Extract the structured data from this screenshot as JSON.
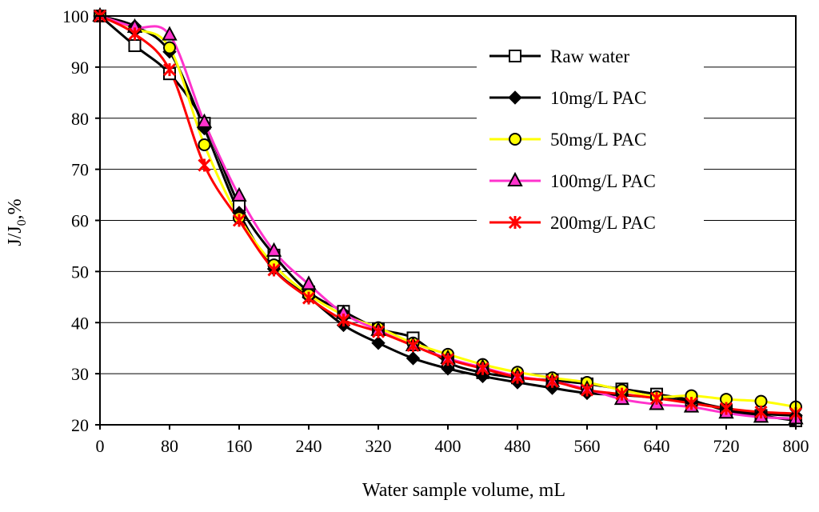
{
  "chart_data": {
    "type": "line",
    "title": "",
    "xlabel": "Water sample volume, mL",
    "ylabel": "J/J0,%",
    "ylabel_main": "J/J",
    "ylabel_sub": "0",
    "ylabel_tail": ",%",
    "xlim": [
      0,
      800
    ],
    "ylim": [
      20,
      100
    ],
    "xticks": [
      0,
      80,
      160,
      240,
      320,
      400,
      480,
      560,
      640,
      720,
      800
    ],
    "yticks": [
      20,
      30,
      40,
      50,
      60,
      70,
      80,
      90,
      100
    ],
    "grid": "horizontal",
    "legend_position": "top-right",
    "x": [
      0,
      40,
      80,
      120,
      160,
      200,
      240,
      280,
      320,
      360,
      400,
      440,
      480,
      520,
      560,
      600,
      640,
      680,
      720,
      760,
      800
    ],
    "series": [
      {
        "name": "Raw water",
        "color": "#000000",
        "marker": "square-open",
        "values": [
          100,
          94.2,
          88.7,
          79,
          63,
          53.2,
          46,
          42.2,
          38.8,
          37,
          32.2,
          30.2,
          29.2,
          28.7,
          28,
          27,
          26,
          24.8,
          22.8,
          21.8,
          20.8
        ]
      },
      {
        "name": "10mg/L PAC",
        "color": "#000000",
        "marker": "diamond-filled",
        "values": [
          100,
          98,
          93,
          78,
          61.5,
          50.5,
          45,
          39.5,
          36,
          33,
          31,
          29.5,
          28.3,
          27.2,
          26.2,
          25.8,
          25.3,
          24.5,
          23.2,
          22.2,
          21.8
        ]
      },
      {
        "name": "50mg/L PAC",
        "color": "#ffff00",
        "marker": "circle-yellow",
        "values": [
          100,
          97.5,
          93.8,
          74.8,
          60.5,
          51.3,
          45.5,
          41.5,
          39,
          36,
          33.8,
          31.8,
          30.3,
          29.2,
          28.3,
          26.8,
          25.5,
          25.7,
          25,
          24.6,
          23.5
        ]
      },
      {
        "name": "100mg/L PAC",
        "color": "#ff33cc",
        "marker": "triangle-magenta",
        "values": [
          100,
          97.8,
          96.3,
          79.2,
          64.8,
          54,
          47.5,
          41.8,
          38.5,
          35.5,
          33,
          31.2,
          29.5,
          28.5,
          27,
          25,
          24,
          23.5,
          22.3,
          21.5,
          21.2
        ]
      },
      {
        "name": "200mg/L PAC",
        "color": "#ff0000",
        "marker": "asterisk-red",
        "values": [
          100,
          96.5,
          89.5,
          70.8,
          60,
          50.3,
          44.8,
          40.5,
          38.2,
          35.5,
          32.8,
          31,
          29.3,
          28.5,
          26.8,
          26,
          25.2,
          24.2,
          23.2,
          22.5,
          22.2
        ]
      }
    ]
  }
}
